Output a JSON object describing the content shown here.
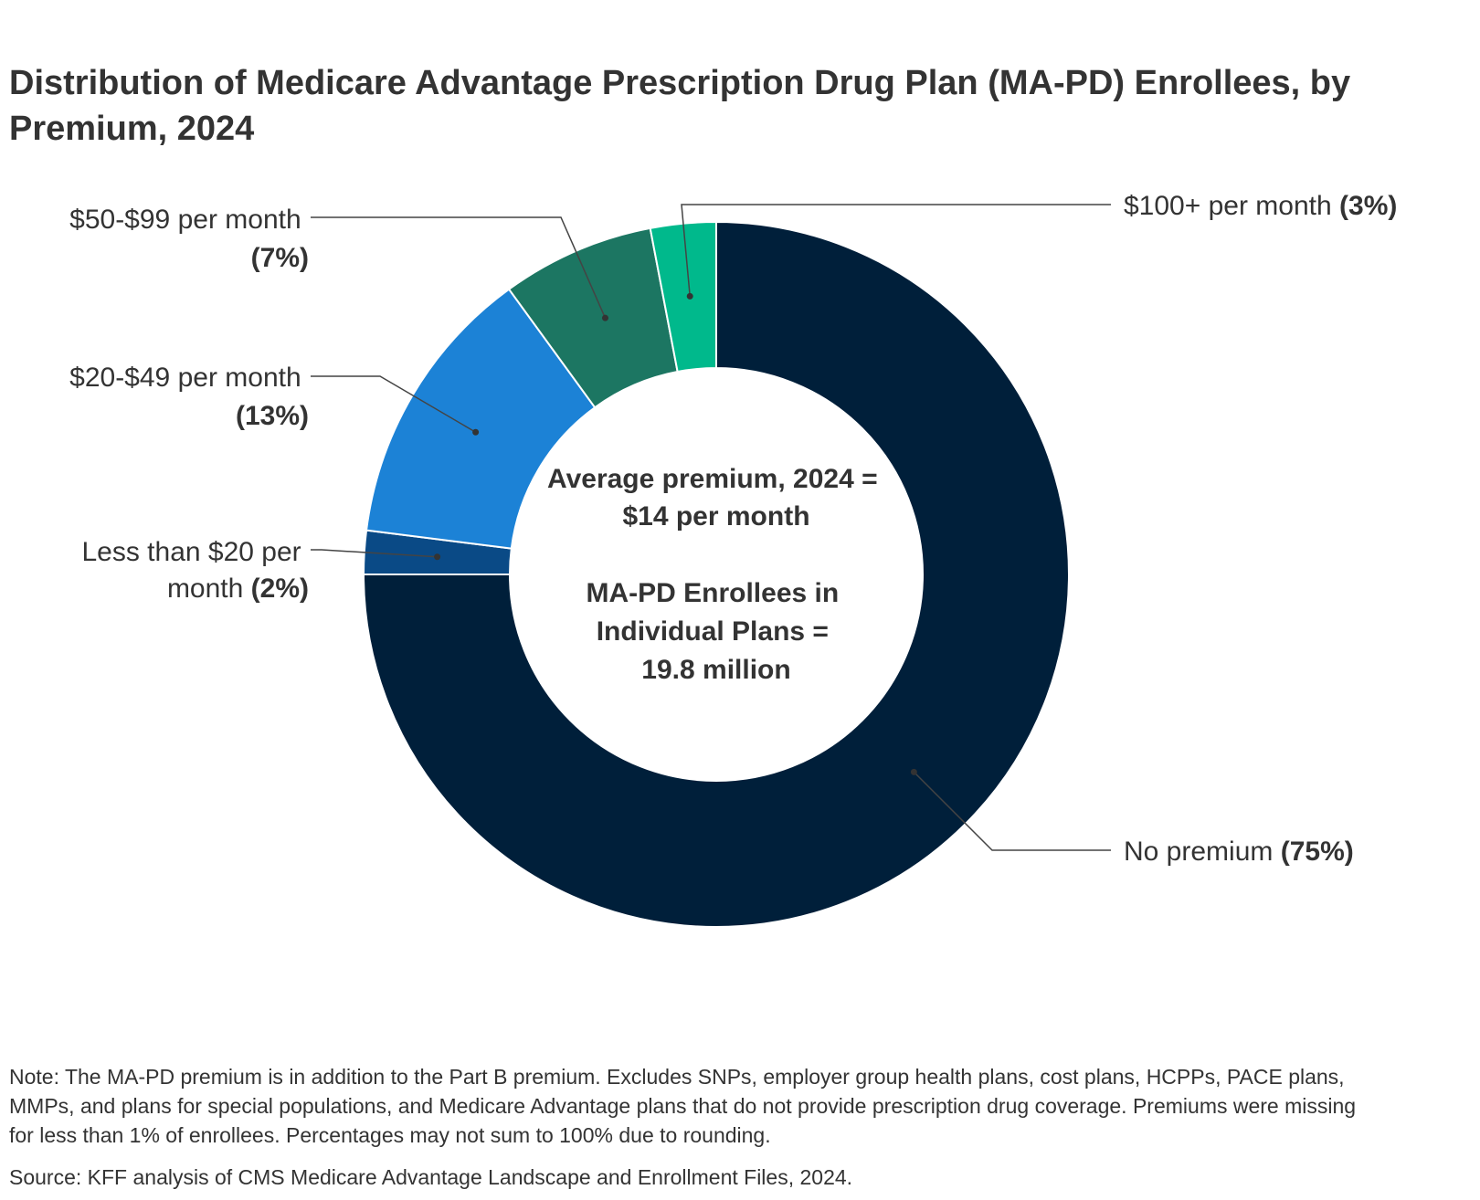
{
  "chart_data": {
    "type": "pie",
    "subtype": "donut",
    "title": "Distribution of Medicare Advantage Prescription Drug Plan (MA-PD) Enrollees, by Premium, 2024",
    "slices": [
      {
        "name": "No premium",
        "value": 75,
        "label_text": "No premium ",
        "label_pct": "(75%)",
        "color": "#001f3a",
        "label_side": "right"
      },
      {
        "name": "Less than $20 per month",
        "value": 2,
        "label_line1": "Less than $20 per",
        "label_line2_text": "month ",
        "label_pct": "(2%)",
        "color": "#0a4a86",
        "label_side": "left"
      },
      {
        "name": "$20-$49 per month",
        "value": 13,
        "label_line1": "$20-$49 per month",
        "label_pct": "(13%)",
        "color": "#1c82d6",
        "label_side": "left"
      },
      {
        "name": "$50-$99 per month",
        "value": 7,
        "label_line1": "$50-$99 per month",
        "label_pct": "(7%)",
        "color": "#1c7662",
        "label_side": "left"
      },
      {
        "name": "$100+ per month",
        "value": 3,
        "label_text": "$100+ per month ",
        "label_pct": "(3%)",
        "color": "#00b98c",
        "label_side": "right"
      }
    ],
    "center_text": {
      "line1": "Average premium, 2024 =",
      "line2": "$14 per month",
      "line3": "MA-PD Enrollees in",
      "line4": "Individual Plans =",
      "line5": "19.8 million"
    },
    "units": "percent of enrollees",
    "start_angle_note": "clockwise from top"
  },
  "note": "Note: The MA-PD premium is in addition to the Part B premium. Excludes SNPs, employer group health plans, cost plans, HCPPs, PACE plans, MMPs, and plans for special populations, and Medicare Advantage plans that do not provide prescription drug coverage. Premiums were missing for less than 1% of enrollees. Percentages may not sum to 100% due to rounding.",
  "source": "Source: KFF analysis of CMS Medicare Advantage Landscape and Enrollment Files, 2024."
}
